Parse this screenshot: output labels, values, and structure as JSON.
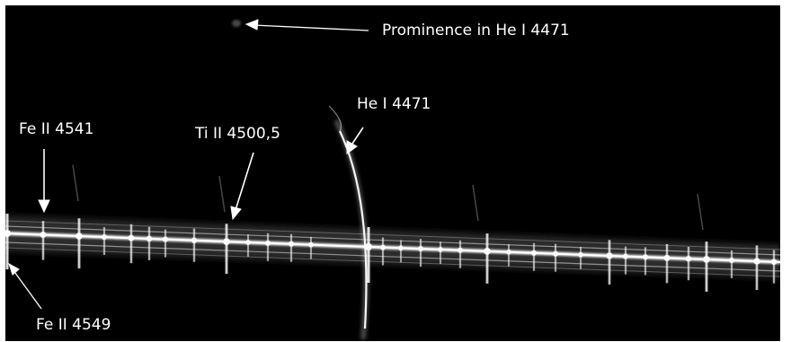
{
  "annotations": {
    "prominence": "Prominence in He I 4471",
    "he_4471": "He I 4471",
    "fe_4541": "Fe II 4541",
    "ti_4500": "Ti II 4500,5",
    "fe_4549": "Fe II 4549"
  },
  "colors": {
    "background": "#000000",
    "frame": "#ffffff",
    "text": "#ffffff",
    "continuum": "#ffffff"
  }
}
